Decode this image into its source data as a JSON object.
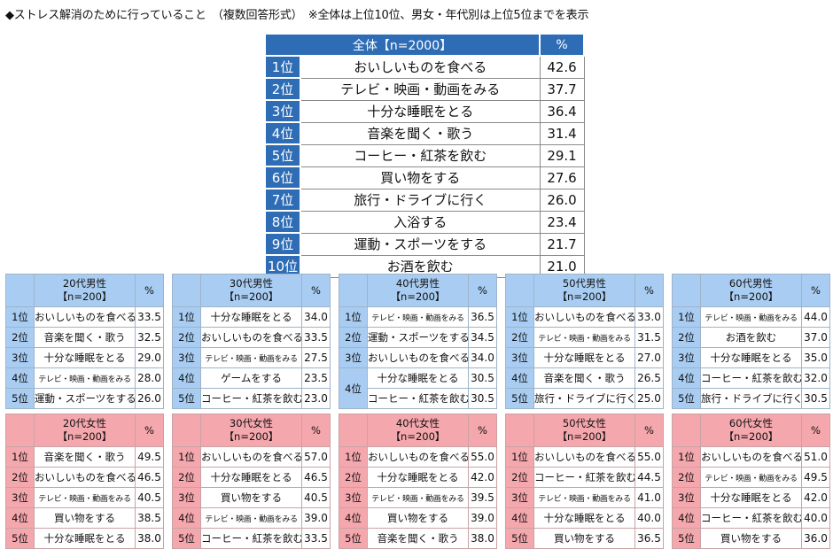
{
  "title": "◆ストレス解消のために行っていること　（複数回答形式）　※全体は上位10位、男女・年代別は上位5位までを表示",
  "main": {
    "header": "全体【n=2000】",
    "pct_header": "%",
    "rows": [
      {
        "rank": "1位",
        "item": "おいしいものを食べる",
        "pct": "42.6"
      },
      {
        "rank": "2位",
        "item": "テレビ・映画・動画をみる",
        "pct": "37.7"
      },
      {
        "rank": "3位",
        "item": "十分な睡眠をとる",
        "pct": "36.4"
      },
      {
        "rank": "4位",
        "item": "音楽を聞く・歌う",
        "pct": "31.4"
      },
      {
        "rank": "5位",
        "item": "コーヒー・紅茶を飲む",
        "pct": "29.1"
      },
      {
        "rank": "6位",
        "item": "買い物をする",
        "pct": "27.6"
      },
      {
        "rank": "7位",
        "item": "旅行・ドライブに行く",
        "pct": "26.0"
      },
      {
        "rank": "8位",
        "item": "入浴する",
        "pct": "23.4"
      },
      {
        "rank": "9位",
        "item": "運動・スポーツをする",
        "pct": "21.7"
      },
      {
        "rank": "10位",
        "item": "お酒を飲む",
        "pct": "21.0"
      }
    ]
  },
  "male": [
    {
      "h1": "20代男性",
      "h2": "【n=200】",
      "pct_header": "%",
      "rows": [
        {
          "rank": "1位",
          "item": "おいしいものを食べる",
          "pct": "33.5"
        },
        {
          "rank": "2位",
          "item": "音楽を聞く・歌う",
          "pct": "32.5"
        },
        {
          "rank": "3位",
          "item": "十分な睡眠をとる",
          "pct": "29.0"
        },
        {
          "rank": "4位",
          "item": "テレビ・映画・動画をみる",
          "pct": "28.0"
        },
        {
          "rank": "5位",
          "item": "運動・スポーツをする",
          "pct": "26.0"
        }
      ]
    },
    {
      "h1": "30代男性",
      "h2": "【n=200】",
      "pct_header": "%",
      "rows": [
        {
          "rank": "1位",
          "item": "十分な睡眠をとる",
          "pct": "34.0"
        },
        {
          "rank": "2位",
          "item": "おいしいものを食べる",
          "pct": "33.5"
        },
        {
          "rank": "3位",
          "item": "テレビ・映画・動画をみる",
          "pct": "27.5"
        },
        {
          "rank": "4位",
          "item": "ゲームをする",
          "pct": "23.5"
        },
        {
          "rank": "5位",
          "item": "コーヒー・紅茶を飲む",
          "pct": "23.0"
        }
      ]
    },
    {
      "h1": "40代男性",
      "h2": "【n=200】",
      "pct_header": "%",
      "rows": [
        {
          "rank": "1位",
          "item": "テレビ・映画・動画をみる",
          "pct": "36.5"
        },
        {
          "rank": "2位",
          "item": "運動・スポーツをする",
          "pct": "34.5"
        },
        {
          "rank": "3位",
          "item": "おいしいものを食べる",
          "pct": "34.0"
        },
        {
          "rank": "4位",
          "item": "十分な睡眠をとる",
          "pct": "30.5"
        },
        {
          "rank": "",
          "item": "コーヒー・紅茶を飲む",
          "pct": "30.5"
        }
      ]
    },
    {
      "h1": "50代男性",
      "h2": "【n=200】",
      "pct_header": "%",
      "rows": [
        {
          "rank": "1位",
          "item": "おいしいものを食べる",
          "pct": "33.0"
        },
        {
          "rank": "2位",
          "item": "テレビ・映画・動画をみる",
          "pct": "31.5"
        },
        {
          "rank": "3位",
          "item": "十分な睡眠をとる",
          "pct": "27.0"
        },
        {
          "rank": "4位",
          "item": "音楽を聞く・歌う",
          "pct": "26.5"
        },
        {
          "rank": "5位",
          "item": "旅行・ドライブに行く",
          "pct": "25.0"
        }
      ]
    },
    {
      "h1": "60代男性",
      "h2": "【n=200】",
      "pct_header": "%",
      "rows": [
        {
          "rank": "1位",
          "item": "テレビ・映画・動画をみる",
          "pct": "44.0"
        },
        {
          "rank": "2位",
          "item": "お酒を飲む",
          "pct": "37.0"
        },
        {
          "rank": "3位",
          "item": "十分な睡眠をとる",
          "pct": "35.0"
        },
        {
          "rank": "4位",
          "item": "コーヒー・紅茶を飲む",
          "pct": "32.0"
        },
        {
          "rank": "5位",
          "item": "旅行・ドライブに行く",
          "pct": "30.5"
        }
      ]
    }
  ],
  "female": [
    {
      "h1": "20代女性",
      "h2": "【n=200】",
      "pct_header": "%",
      "rows": [
        {
          "rank": "1位",
          "item": "音楽を聞く・歌う",
          "pct": "49.5"
        },
        {
          "rank": "2位",
          "item": "おいしいものを食べる",
          "pct": "46.5"
        },
        {
          "rank": "3位",
          "item": "テレビ・映画・動画をみる",
          "pct": "40.5"
        },
        {
          "rank": "4位",
          "item": "買い物をする",
          "pct": "38.5"
        },
        {
          "rank": "5位",
          "item": "十分な睡眠をとる",
          "pct": "38.0"
        }
      ]
    },
    {
      "h1": "30代女性",
      "h2": "【n=200】",
      "pct_header": "%",
      "rows": [
        {
          "rank": "1位",
          "item": "おいしいものを食べる",
          "pct": "57.0"
        },
        {
          "rank": "2位",
          "item": "十分な睡眠をとる",
          "pct": "46.5"
        },
        {
          "rank": "3位",
          "item": "買い物をする",
          "pct": "40.5"
        },
        {
          "rank": "4位",
          "item": "テレビ・映画・動画をみる",
          "pct": "39.0"
        },
        {
          "rank": "5位",
          "item": "コーヒー・紅茶を飲む",
          "pct": "33.5"
        }
      ]
    },
    {
      "h1": "40代女性",
      "h2": "【n=200】",
      "pct_header": "%",
      "rows": [
        {
          "rank": "1位",
          "item": "おいしいものを食べる",
          "pct": "55.0"
        },
        {
          "rank": "2位",
          "item": "十分な睡眠をとる",
          "pct": "42.0"
        },
        {
          "rank": "3位",
          "item": "テレビ・映画・動画をみる",
          "pct": "39.5"
        },
        {
          "rank": "4位",
          "item": "買い物をする",
          "pct": "39.0"
        },
        {
          "rank": "5位",
          "item": "音楽を聞く・歌う",
          "pct": "38.0"
        }
      ]
    },
    {
      "h1": "50代女性",
      "h2": "【n=200】",
      "pct_header": "%",
      "rows": [
        {
          "rank": "1位",
          "item": "おいしいものを食べる",
          "pct": "55.0"
        },
        {
          "rank": "2位",
          "item": "コーヒー・紅茶を飲む",
          "pct": "44.5"
        },
        {
          "rank": "3位",
          "item": "テレビ・映画・動画をみる",
          "pct": "41.0"
        },
        {
          "rank": "4位",
          "item": "十分な睡眠をとる",
          "pct": "40.0"
        },
        {
          "rank": "5位",
          "item": "買い物をする",
          "pct": "36.5"
        }
      ]
    },
    {
      "h1": "60代女性",
      "h2": "【n=200】",
      "pct_header": "%",
      "rows": [
        {
          "rank": "1位",
          "item": "おいしいものを食べる",
          "pct": "51.0"
        },
        {
          "rank": "2位",
          "item": "テレビ・映画・動画をみる",
          "pct": "49.5"
        },
        {
          "rank": "3位",
          "item": "十分な睡眠をとる",
          "pct": "42.0"
        },
        {
          "rank": "4位",
          "item": "コーヒー・紅茶を飲む",
          "pct": "40.0"
        },
        {
          "rank": "5位",
          "item": "買い物をする",
          "pct": "36.0"
        }
      ]
    }
  ]
}
